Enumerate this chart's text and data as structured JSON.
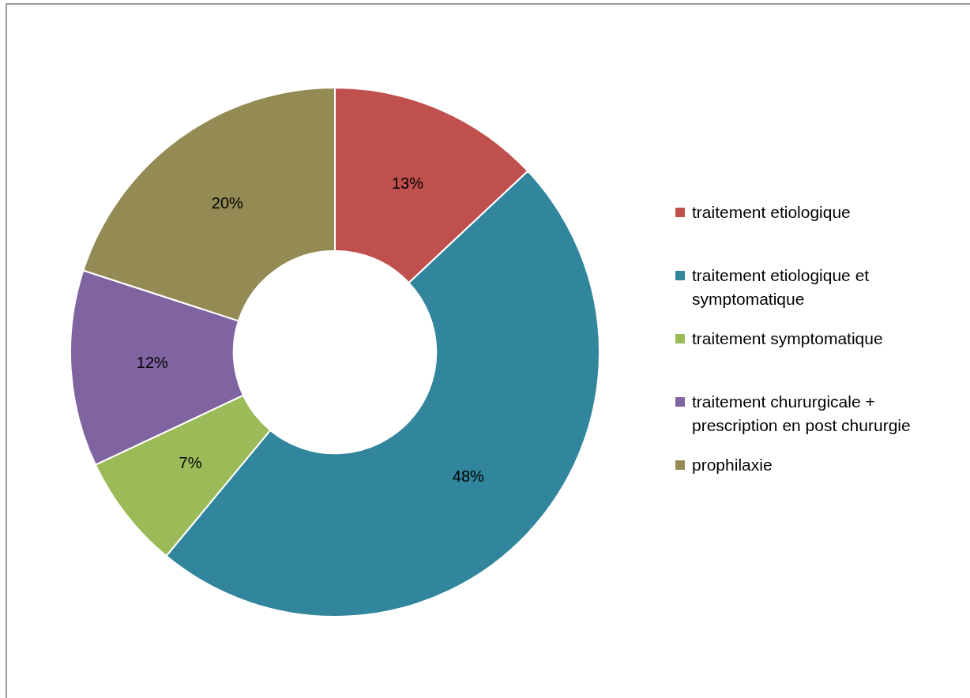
{
  "chart_data": {
    "type": "donut",
    "categories": [
      "traitement etiologique",
      "traitement etiologique et symptomatique",
      "traitement symptomatique",
      "traitement chururgicale + prescription en post chururgie",
      "prophilaxie"
    ],
    "values": [
      13,
      48,
      7,
      12,
      20
    ],
    "colors": [
      "#c0504d",
      "#31859c",
      "#9bbb59",
      "#8064a2",
      "#948a54"
    ],
    "value_labels": [
      "13%",
      "48%",
      "7%",
      "12%",
      "20%"
    ],
    "legend": "right"
  }
}
